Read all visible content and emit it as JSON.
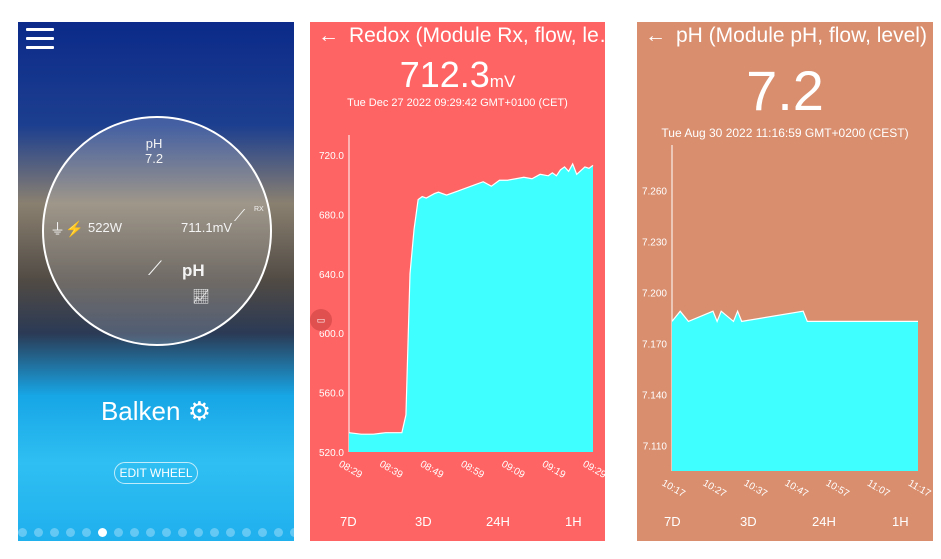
{
  "wheel_screen": {
    "menu_icon": "hamburger-icon",
    "top_label": "pH",
    "top_value": "7.2",
    "power_value": "522W",
    "power_icon_label": "WATT",
    "redox_value": "711.1mV",
    "redox_icon_label": "RX",
    "center_label": "pH",
    "pool_name": "Balken",
    "edit_button": "EDIT WHEEL",
    "page_count": 18,
    "active_page": 5
  },
  "redox_screen": {
    "title": "Redox (Module Rx, flow, le…",
    "value": "712.3",
    "unit": "mV",
    "timestamp": "Tue Dec 27 2022 09:29:42 GMT+0100 (CET)",
    "ranges": [
      "7D",
      "3D",
      "24H",
      "1H"
    ],
    "colors": {
      "background": "#ff6464",
      "fill": "#40ffff"
    },
    "chart_data": {
      "type": "area",
      "yticks": [
        "520.0",
        "560.0",
        "600.0",
        "640.0",
        "680.0",
        "720.0"
      ],
      "ylim": [
        520,
        720
      ],
      "xticks": [
        "08:29",
        "08:39",
        "08:49",
        "08:59",
        "09:09",
        "09:19",
        "09:29"
      ],
      "xlim": [
        "08:29",
        "09:29"
      ],
      "x": [
        "08:29",
        "08:32",
        "08:35",
        "08:38",
        "08:42",
        "08:43",
        "08:44",
        "08:45",
        "08:46",
        "08:47",
        "08:48",
        "08:50",
        "08:51",
        "08:53",
        "08:56",
        "08:58",
        "09:00",
        "09:02",
        "09:04",
        "09:06",
        "09:08",
        "09:10",
        "09:12",
        "09:14",
        "09:16",
        "09:18",
        "09:19",
        "09:20",
        "09:21",
        "09:22",
        "09:23",
        "09:24",
        "09:25",
        "09:27",
        "09:28",
        "09:29"
      ],
      "y": [
        533,
        532,
        532,
        533,
        533,
        545,
        640,
        670,
        690,
        692,
        691,
        694,
        695,
        693,
        696,
        698,
        700,
        702,
        699,
        703,
        703,
        704,
        705,
        704,
        707,
        706,
        708,
        706,
        710,
        712,
        709,
        714,
        707,
        712,
        711,
        713
      ]
    }
  },
  "ph_screen": {
    "title": "pH (Module pH, flow, level)",
    "value": "7.2",
    "timestamp": "Tue Aug 30 2022 11:16:59 GMT+0200 (CEST)",
    "ranges": [
      "7D",
      "3D",
      "24H",
      "1H"
    ],
    "colors": {
      "background": "#d98e6e",
      "fill": "#40ffff"
    },
    "chart_data": {
      "type": "area",
      "yticks": [
        "7.110",
        "7.140",
        "7.170",
        "7.200",
        "7.230",
        "7.260"
      ],
      "ylim": [
        7.095,
        7.275
      ],
      "xticks": [
        "10:17",
        "10:27",
        "10:37",
        "10:47",
        "10:57",
        "11:07",
        "11:17"
      ],
      "xlim": [
        "10:17",
        "11:17"
      ],
      "x": [
        "10:17",
        "10:19",
        "10:21",
        "10:27",
        "10:28",
        "10:29",
        "10:32",
        "10:33",
        "10:34",
        "10:49",
        "10:50",
        "11:17"
      ],
      "y": [
        7.183,
        7.189,
        7.183,
        7.189,
        7.183,
        7.189,
        7.183,
        7.189,
        7.183,
        7.189,
        7.183,
        7.183
      ]
    }
  }
}
